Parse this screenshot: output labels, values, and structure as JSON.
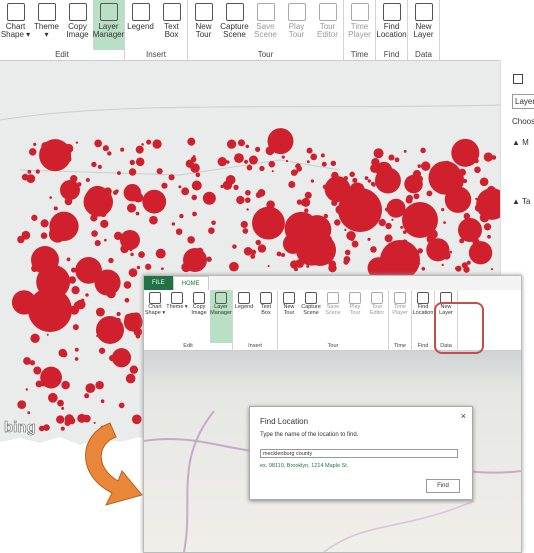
{
  "ribbon": {
    "groups": [
      {
        "name": "Edit",
        "buttons": [
          {
            "lines": [
              "Chart",
              "Shape ▾"
            ]
          },
          {
            "lines": [
              "Theme ▾"
            ]
          },
          {
            "lines": [
              "Copy",
              "Image"
            ]
          },
          {
            "lines": [
              "Layer",
              "Manager"
            ],
            "selected": true
          }
        ]
      },
      {
        "name": "Insert",
        "buttons": [
          {
            "lines": [
              "Legend"
            ]
          },
          {
            "lines": [
              "Text",
              "Box"
            ]
          }
        ]
      },
      {
        "name": "Tour",
        "buttons": [
          {
            "lines": [
              "New",
              "Tour"
            ]
          },
          {
            "lines": [
              "Capture",
              "Scene"
            ]
          },
          {
            "lines": [
              "Save",
              "Scene"
            ],
            "disabled": true
          },
          {
            "lines": [
              "Play",
              "Tour"
            ],
            "disabled": true
          },
          {
            "lines": [
              "Tour",
              "Editor"
            ],
            "disabled": true
          }
        ]
      },
      {
        "name": "Time",
        "buttons": [
          {
            "lines": [
              "Time",
              "Player"
            ],
            "disabled": true
          }
        ]
      },
      {
        "name": "Find",
        "buttons": [
          {
            "lines": [
              "Find",
              "Location"
            ]
          }
        ]
      },
      {
        "name": "Data",
        "buttons": [
          {
            "lines": [
              "New",
              "Layer"
            ]
          }
        ]
      }
    ]
  },
  "side_panel": {
    "layer": "Layer",
    "choose": "Choose",
    "sections": [
      "M",
      "Ta"
    ]
  },
  "map": {
    "logo": "bing"
  },
  "inset": {
    "tabs": [
      "FILE",
      "HOME"
    ],
    "dialog": {
      "title": "Find Location",
      "prompt": "Type the name of the location to find.",
      "input": "mecklenburg county",
      "example": "ex. 98110, Brooklyn, 1214 Maple St.",
      "button": "Find",
      "close": "×"
    }
  }
}
